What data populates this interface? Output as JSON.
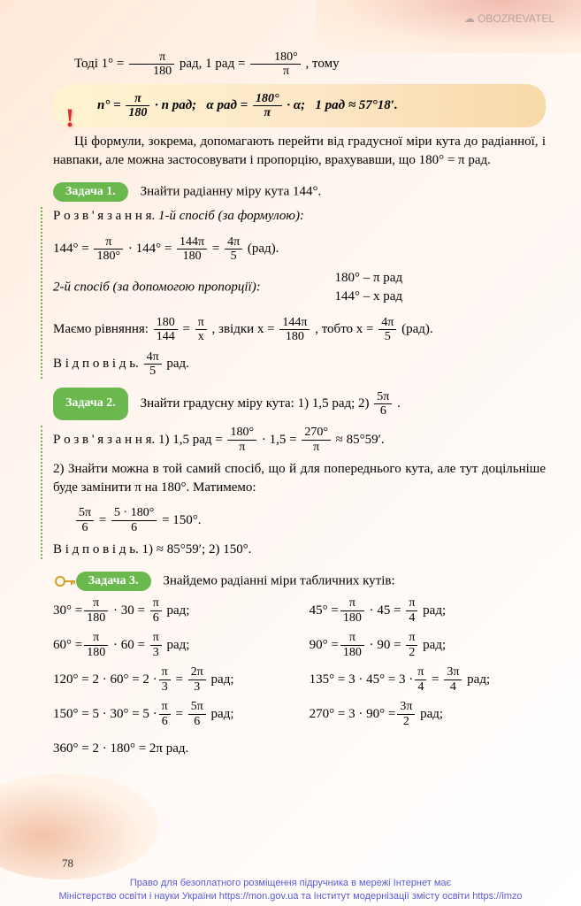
{
  "watermark": "☁ OBOZREVATEL",
  "intro": {
    "lead": "Тоді",
    "one_deg": "1° =",
    "f1": {
      "num": "π",
      "den": "180"
    },
    "rad_comma": " рад, ",
    "one_rad_eq": "1 рад =",
    "f2": {
      "num": "180°",
      "den": "π"
    },
    "tail": ", тому"
  },
  "box": {
    "bang": "!",
    "n_deg": "n° =",
    "f1": {
      "num": "π",
      "den": "180"
    },
    "dot_n": " · n рад;",
    "alpha": "α рад =",
    "f2": {
      "num": "180°",
      "den": "π"
    },
    "dot_a": " · α;",
    "one_rad": "1 рад ≈ 57°18′."
  },
  "p2": "Ці формули, зокрема, допомагають перейти від градусної міри кута до радіанної, і навпаки, але можна застосовувати і пропорцію, врахувавши, що 180° = π рад.",
  "task1": {
    "badge": "Задача 1.",
    "title": "Знайти радіанну міру кута 144°.",
    "rozv": "Р о з в ' я з а н н я.",
    "way1": "1-й спосіб (за формулою):",
    "eq1": {
      "head": "144° =",
      "f1": {
        "num": "π",
        "den": "180°"
      },
      "dot": " · 144° =",
      "f2": {
        "num": "144π",
        "den": "180"
      },
      "eq": "=",
      "f3": {
        "num": "4π",
        "den": "5"
      },
      "tail": "(рад)."
    },
    "way2lead": "2-й спосіб (за допомогою пропорції): ",
    "prop1": "180° – π рад",
    "prop2": "144° – x рад",
    "eq2": {
      "head": "Маємо рівняння:",
      "f1": {
        "num": "180",
        "den": "144"
      },
      "eq1": "=",
      "f2": {
        "num": "π",
        "den": "x"
      },
      "mid": ", звідки x =",
      "f3": {
        "num": "144π",
        "den": "180"
      },
      "mid2": ", тобто x =",
      "f4": {
        "num": "4π",
        "den": "5"
      },
      "tail": "(рад)."
    },
    "ans": "В і д п о в і д ь.",
    "ans_f": {
      "num": "4π",
      "den": "5"
    },
    "ans_tail": " рад."
  },
  "task2": {
    "badge": "Задача 2.",
    "title": "Знайти градусну міру кута: 1) 1,5 рад;   2)",
    "title_f": {
      "num": "5π",
      "den": "6"
    },
    "title_dot": ".",
    "rozv": "Р о з в ' я з а н н я. 1) 1,5 рад =",
    "f1": {
      "num": "180°",
      "den": "π"
    },
    "dot": "· 1,5 =",
    "f2": {
      "num": "270°",
      "den": "π"
    },
    "tail": "≈ 85°59′.",
    "p2": "2) Знайти можна в той самий спосіб, що й для попереднього кута, але тут доцільніше буде замінити π на 180°. Матимемо:",
    "eq2": {
      "f1": {
        "num": "5π",
        "den": "6"
      },
      "eq1": "=",
      "f2": {
        "num": "5 · 180°",
        "den": "6"
      },
      "tail": "= 150°."
    },
    "ans": "В і д п о в і д ь. 1) ≈ 85°59′;   2) 150°."
  },
  "task3": {
    "badge": "Задача 3.",
    "title": "Знайдемо радіанні міри табличних кутів:",
    "rows": [
      {
        "l": {
          "d": "30° =",
          "f1n": "π",
          "f1d": "180",
          "m": "· 30 =",
          "f2n": "π",
          "f2d": "6",
          "t": "рад;"
        },
        "r": {
          "d": "45° =",
          "f1n": "π",
          "f1d": "180",
          "m": "· 45 =",
          "f2n": "π",
          "f2d": "4",
          "t": "рад;"
        }
      },
      {
        "l": {
          "d": "60° =",
          "f1n": "π",
          "f1d": "180",
          "m": "· 60 =",
          "f2n": "π",
          "f2d": "3",
          "t": "рад;"
        },
        "r": {
          "d": "90° =",
          "f1n": "π",
          "f1d": "180",
          "m": "· 90 =",
          "f2n": "π",
          "f2d": "2",
          "t": "рад;"
        }
      },
      {
        "l": {
          "d": "120° = 2 · 60° = 2 ·",
          "f1n": "π",
          "f1d": "3",
          "m": "=",
          "f2n": "2π",
          "f2d": "3",
          "t": "рад;"
        },
        "r": {
          "d": "135° = 3 · 45° = 3 ·",
          "f1n": "π",
          "f1d": "4",
          "m": "=",
          "f2n": "3π",
          "f2d": "4",
          "t": "рад;"
        }
      },
      {
        "l": {
          "d": "150° = 5 · 30° = 5 ·",
          "f1n": "π",
          "f1d": "6",
          "m": "=",
          "f2n": "5π",
          "f2d": "6",
          "t": "рад;"
        },
        "r": {
          "d": "270° = 3 · 90° =",
          "f1n": "3π",
          "f1d": "2",
          "m": "",
          "f2n": "",
          "f2d": "",
          "t": "рад;"
        }
      },
      {
        "l": {
          "d": "360° = 2 · 180° = 2π рад.",
          "f1n": "",
          "f1d": "",
          "m": "",
          "f2n": "",
          "f2d": "",
          "t": ""
        },
        "r": {
          "d": "",
          "f1n": "",
          "f1d": "",
          "m": "",
          "f2n": "",
          "f2d": "",
          "t": ""
        }
      }
    ]
  },
  "page_num": "78",
  "footer": {
    "l1": "Право для безоплатного розміщення підручника в мережі Інтернет має",
    "l2": "Міністерство освіти і науки України https://mon.gov.ua та Інститут модернізації змісту освіти  https://imzo"
  }
}
